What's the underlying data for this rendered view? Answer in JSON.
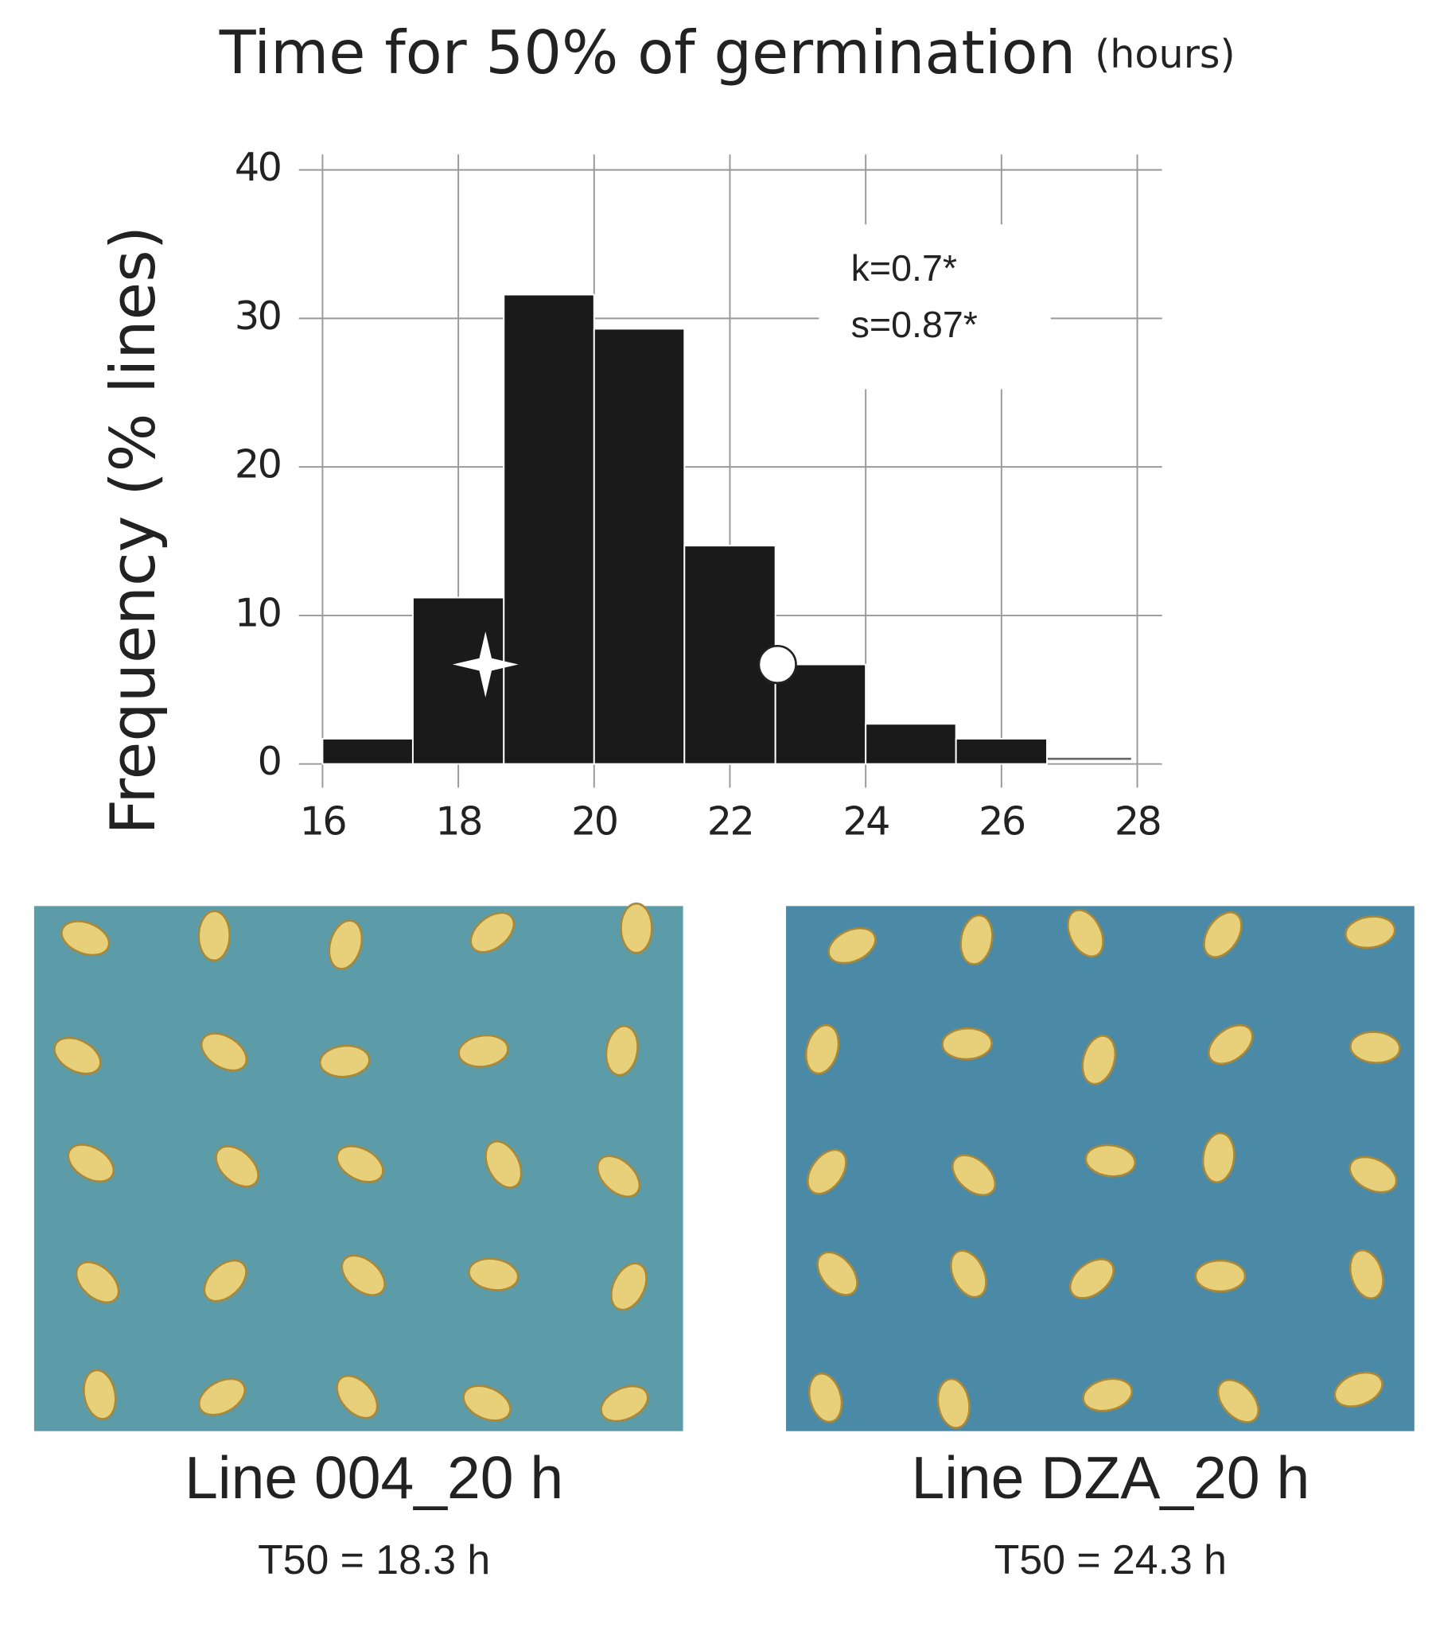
{
  "chart_data": {
    "type": "histogram",
    "title": "Time for 50% of germination",
    "title_unit": "(hours)",
    "y_label": "Frequency (% lines)",
    "bins": [
      16,
      17.33,
      18.67,
      20,
      21.33,
      22.67,
      24,
      25.33,
      26.67,
      28
    ],
    "values": [
      1.7,
      11.2,
      31.6,
      29.3,
      14.7,
      6.7,
      2.7,
      1.7,
      0
    ],
    "color": "#1a1a1a",
    "xlim": [
      16,
      28
    ],
    "xticks": [
      16,
      18,
      20,
      22,
      24,
      26,
      28
    ],
    "ylim": [
      0,
      40
    ],
    "yticks": [
      0,
      10,
      20,
      30,
      40
    ],
    "grid": true,
    "annotations": [
      "k=0.7*",
      "s=0.87*"
    ],
    "markers": [
      {
        "shape": "star",
        "x": 18.4,
        "y": 6.7
      },
      {
        "shape": "circle",
        "x": 22.7,
        "y": 6.7
      }
    ]
  },
  "panels": [
    {
      "caption": "Line 004_20 h",
      "subcaption": "T50 = 18.3 h"
    },
    {
      "caption": "Line DZA_20 h",
      "subcaption": "T50 = 24.3 h"
    }
  ]
}
